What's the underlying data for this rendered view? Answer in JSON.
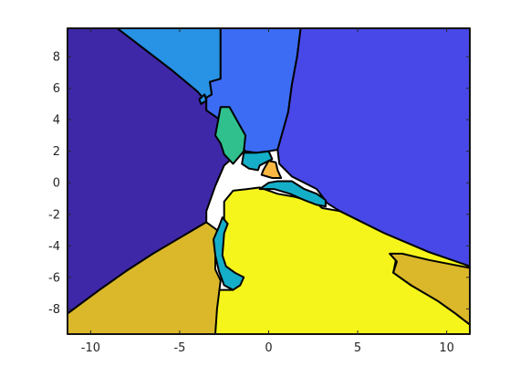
{
  "chart_data": {
    "type": "heatmap",
    "title": "",
    "xlabel": "",
    "ylabel": "",
    "xlim": [
      -11.3,
      11.3
    ],
    "ylim": [
      -9.6,
      9.8
    ],
    "grid": false,
    "x_ticks": [
      -10,
      -5,
      0,
      5,
      10
    ],
    "y_ticks": [
      -8,
      -6,
      -4,
      -2,
      0,
      2,
      4,
      6,
      8
    ],
    "regions": [
      {
        "name": "region-1",
        "color": "#3f28a8",
        "polygon": [
          [
            -11.3,
            9.8
          ],
          [
            -8.5,
            9.8
          ],
          [
            -7,
            8.5
          ],
          [
            -5.5,
            7.2
          ],
          [
            -4,
            5.8
          ],
          [
            -3,
            4.5
          ],
          [
            -2,
            2.8
          ],
          [
            -1.5,
            2.1
          ],
          [
            -2.5,
            1.1
          ],
          [
            -3,
            -0.2
          ],
          [
            -3.5,
            -1.8
          ],
          [
            -3.5,
            -2.5
          ],
          [
            -5,
            -3.5
          ],
          [
            -6.5,
            -4.5
          ],
          [
            -8,
            -5.6
          ],
          [
            -9.5,
            -6.8
          ],
          [
            -11.3,
            -8.3
          ]
        ]
      },
      {
        "name": "region-2",
        "color": "#2892e4",
        "polygon": [
          [
            -8.5,
            9.8
          ],
          [
            -2.7,
            9.8
          ],
          [
            -2.7,
            6.6
          ],
          [
            -3.3,
            6.4
          ],
          [
            -3.2,
            5.6
          ],
          [
            -3.5,
            5.4
          ],
          [
            -3.5,
            4.6
          ],
          [
            -2.6,
            3.9
          ],
          [
            -2.7,
            3.0
          ],
          [
            -1.5,
            2.1
          ],
          [
            -2,
            2.8
          ],
          [
            -3,
            4.5
          ],
          [
            -4,
            5.8
          ],
          [
            -5.5,
            7.2
          ],
          [
            -7,
            8.5
          ]
        ]
      },
      {
        "name": "region-3",
        "color": "#3c6cf4",
        "polygon": [
          [
            -2.7,
            9.8
          ],
          [
            1.8,
            9.8
          ],
          [
            1.6,
            8.0
          ],
          [
            1.3,
            6.2
          ],
          [
            1.1,
            4.5
          ],
          [
            0.5,
            2.1
          ],
          [
            0,
            2.0
          ],
          [
            -0.7,
            1.9
          ],
          [
            -1.3,
            2.0
          ],
          [
            -1.7,
            2.5
          ],
          [
            -2.2,
            3.2
          ],
          [
            -2.6,
            3.9
          ],
          [
            -3.5,
            4.6
          ],
          [
            -3.5,
            5.4
          ],
          [
            -3.2,
            5.6
          ],
          [
            -3.3,
            6.4
          ],
          [
            -2.7,
            6.6
          ]
        ]
      },
      {
        "name": "region-4",
        "color": "#4848e8",
        "polygon": [
          [
            1.8,
            9.8
          ],
          [
            11.3,
            9.8
          ],
          [
            11.3,
            -5.3
          ],
          [
            9,
            -4.4
          ],
          [
            6.5,
            -3.2
          ],
          [
            4,
            -1.8
          ],
          [
            3.3,
            -1.3
          ],
          [
            2.7,
            -0.4
          ],
          [
            1.3,
            0.4
          ],
          [
            0.6,
            1.2
          ],
          [
            0.5,
            2.1
          ],
          [
            1.1,
            4.5
          ],
          [
            1.3,
            6.2
          ],
          [
            1.6,
            8.0
          ]
        ]
      },
      {
        "name": "region-5",
        "color": "#f5f51c",
        "polygon": [
          [
            -3,
            -9.6
          ],
          [
            11.3,
            -9.6
          ],
          [
            11.3,
            -9.0
          ],
          [
            10.5,
            -8.3
          ],
          [
            9.5,
            -7.5
          ],
          [
            8,
            -6.5
          ],
          [
            7,
            -5.7
          ],
          [
            7.2,
            -4.6
          ],
          [
            9,
            -5
          ],
          [
            11.3,
            -5.4
          ],
          [
            11.3,
            -5.3
          ],
          [
            9,
            -4.4
          ],
          [
            6.5,
            -3.2
          ],
          [
            4,
            -1.8
          ],
          [
            3.0,
            -1.6
          ],
          [
            2.7,
            -1.3
          ],
          [
            1.5,
            -0.9
          ],
          [
            0.5,
            -0.7
          ],
          [
            -0.5,
            -0.3
          ],
          [
            -1.2,
            -0.4
          ],
          [
            -2,
            -0.5
          ],
          [
            -2.5,
            -1.2
          ],
          [
            -2.5,
            -2.3
          ],
          [
            -2.7,
            -2.8
          ],
          [
            -3.2,
            -3.8
          ],
          [
            -3.1,
            -4.5
          ],
          [
            -2.8,
            -5.3
          ],
          [
            -2.4,
            -6.0
          ],
          [
            -2.0,
            -6.8
          ],
          [
            -3.0,
            -6.8
          ],
          [
            -3.1,
            -7.5
          ],
          [
            -3,
            -9.6
          ]
        ]
      },
      {
        "name": "region-6",
        "color": "#dbb829",
        "polygon": [
          [
            -11.3,
            -9.6
          ],
          [
            -3,
            -9.6
          ],
          [
            -2.9,
            -8
          ],
          [
            -2.7,
            -6.2
          ],
          [
            -3.0,
            -5.5
          ],
          [
            -3.0,
            -4.0
          ],
          [
            -2.9,
            -3.0
          ],
          [
            -3.5,
            -2.5
          ],
          [
            -5,
            -3.5
          ],
          [
            -6.5,
            -4.5
          ],
          [
            -8,
            -5.6
          ],
          [
            -9.5,
            -6.8
          ],
          [
            -11.3,
            -8.3
          ]
        ]
      },
      {
        "name": "region-7",
        "color": "#dbb829",
        "polygon": [
          [
            6.8,
            -4.5
          ],
          [
            7.5,
            -4.5
          ],
          [
            9,
            -4.9
          ],
          [
            11.3,
            -5.4
          ],
          [
            11.3,
            -9.0
          ],
          [
            10.5,
            -8.3
          ],
          [
            9.5,
            -7.5
          ],
          [
            8,
            -6.5
          ],
          [
            7,
            -5.7
          ],
          [
            7.2,
            -5.0
          ]
        ]
      },
      {
        "name": "region-8",
        "color": "#2fc08e",
        "polygon": [
          [
            -2.7,
            4.8
          ],
          [
            -2.2,
            4.8
          ],
          [
            -1.7,
            3.8
          ],
          [
            -1.3,
            3.0
          ],
          [
            -1.4,
            2.0
          ],
          [
            -2.0,
            1.2
          ],
          [
            -2.5,
            1.8
          ],
          [
            -2.7,
            2.5
          ],
          [
            -3.0,
            3.0
          ]
        ]
      },
      {
        "name": "region-9",
        "color": "#15aec8",
        "polygon": [
          [
            -1.4,
            1.9
          ],
          [
            -0.7,
            1.9
          ],
          [
            0,
            2.0
          ],
          [
            0.2,
            1.5
          ],
          [
            -0.5,
            1.1
          ],
          [
            -0.6,
            0.8
          ],
          [
            -1.1,
            0.9
          ],
          [
            -1.5,
            1.2
          ]
        ]
      },
      {
        "name": "region-10",
        "color": "#f8b842",
        "polygon": [
          [
            -0.3,
            0.8
          ],
          [
            0,
            1.4
          ],
          [
            0.4,
            1.3
          ],
          [
            0.5,
            0.8
          ],
          [
            0.7,
            0.3
          ],
          [
            0.2,
            0.3
          ],
          [
            -0.4,
            0.5
          ]
        ]
      },
      {
        "name": "region-11",
        "color": "#15aec8",
        "polygon": [
          [
            -0.5,
            -0.4
          ],
          [
            0,
            0
          ],
          [
            0.5,
            0.1
          ],
          [
            1.3,
            0.1
          ],
          [
            2.0,
            -0.4
          ],
          [
            2.7,
            -0.7
          ],
          [
            3.2,
            -1.1
          ],
          [
            3.2,
            -1.5
          ],
          [
            2.7,
            -1.4
          ],
          [
            2.0,
            -1.1
          ],
          [
            1.2,
            -0.7
          ],
          [
            0.3,
            -0.4
          ]
        ]
      },
      {
        "name": "region-12",
        "color": "#15aec8",
        "polygon": [
          [
            -2.6,
            -2.2
          ],
          [
            -2.3,
            -2.6
          ],
          [
            -2.5,
            -3.2
          ],
          [
            -2.6,
            -4.6
          ],
          [
            -2.4,
            -5.3
          ],
          [
            -1.9,
            -5.7
          ],
          [
            -1.4,
            -6.0
          ],
          [
            -1.6,
            -6.5
          ],
          [
            -2.0,
            -6.8
          ],
          [
            -2.5,
            -6.5
          ],
          [
            -2.8,
            -5.6
          ],
          [
            -3.0,
            -4.6
          ],
          [
            -3.1,
            -3.6
          ],
          [
            -2.8,
            -2.8
          ]
        ]
      },
      {
        "name": "region-13",
        "color": "#2892e4",
        "polygon": [
          [
            -3.9,
            5.3
          ],
          [
            -3.6,
            5.6
          ],
          [
            -3.5,
            5.2
          ],
          [
            -3.8,
            5.0
          ]
        ]
      }
    ]
  }
}
